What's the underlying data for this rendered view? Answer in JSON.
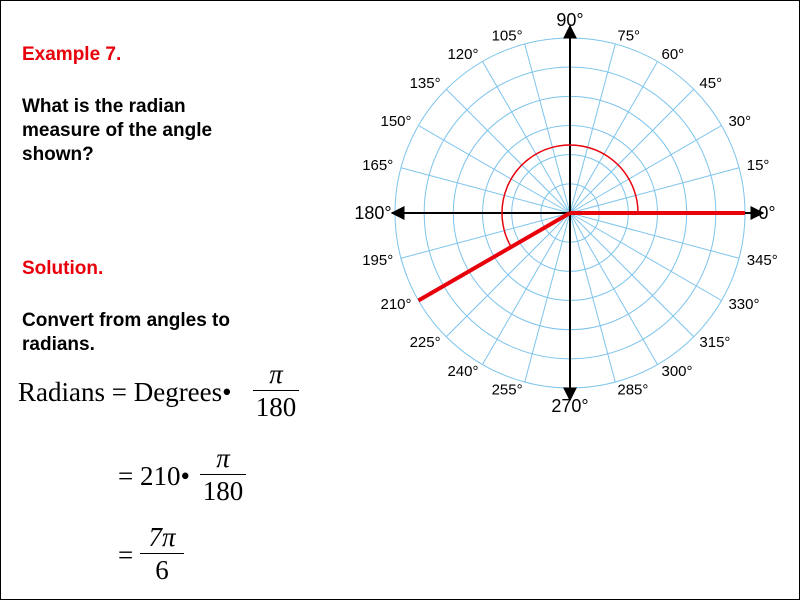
{
  "example_title": "Example 7.",
  "question": [
    "What is the radian",
    "measure of the angle",
    "shown?"
  ],
  "solution_title": "Solution.",
  "instruction": [
    "Convert from angles to",
    "radians."
  ],
  "formula": {
    "lhs": "Radians = Degrees",
    "step2_prefix": "= 210",
    "step3_prefix": "=",
    "dot": "•",
    "pi": "π",
    "denominator": "180",
    "result_numerator": "7π",
    "result_denominator": "6"
  },
  "polar_grid": {
    "angle_labels": [
      "0°",
      "15°",
      "30°",
      "45°",
      "60°",
      "75°",
      "90°",
      "105°",
      "120°",
      "135°",
      "150°",
      "165°",
      "180°",
      "195°",
      "210°",
      "225°",
      "240°",
      "255°",
      "270°",
      "285°",
      "300°",
      "315°",
      "330°",
      "345°"
    ],
    "angle_values": [
      0,
      15,
      30,
      45,
      60,
      75,
      90,
      105,
      120,
      135,
      150,
      165,
      180,
      195,
      210,
      225,
      240,
      255,
      270,
      285,
      300,
      315,
      330,
      345
    ],
    "ring_count": 6,
    "shown_angle_degrees": 210,
    "colors": {
      "grid": "#7ec4ec",
      "axes": "#000000",
      "angle": "#e8000b",
      "heading": "#e8000b"
    }
  }
}
